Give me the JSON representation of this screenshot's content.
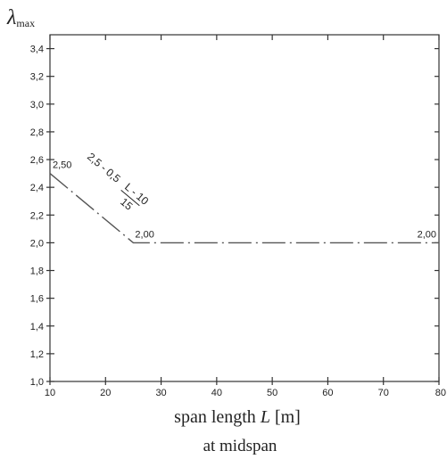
{
  "chart_data": {
    "type": "line",
    "title": "",
    "ylabel": {
      "symbol": "λ",
      "subscript": "max"
    },
    "xlabel": {
      "prefix": "span length ",
      "var": "L",
      "suffix": " [m]"
    },
    "caption": "at midspan",
    "xlim": [
      10,
      80
    ],
    "ylim": [
      1.0,
      3.5
    ],
    "x_ticks": [
      10,
      20,
      30,
      40,
      50,
      60,
      70,
      80
    ],
    "x_tick_labels": [
      "10",
      "20",
      "30",
      "40",
      "50",
      "60",
      "70",
      "80"
    ],
    "y_ticks": [
      1.0,
      1.2,
      1.4,
      1.6,
      1.8,
      2.0,
      2.2,
      2.4,
      2.6,
      2.8,
      3.0,
      3.2,
      3.4
    ],
    "y_tick_labels": [
      "1,0",
      "1,2",
      "1,4",
      "1,6",
      "1,8",
      "2,0",
      "2,2",
      "2,4",
      "2,6",
      "2,8",
      "3,0",
      "3,2",
      "3,4"
    ],
    "grid": false,
    "series": [
      {
        "x": [
          10,
          25,
          80
        ],
        "y": [
          2.5,
          2.0,
          2.0
        ],
        "style": "dash-dot",
        "color": "#555555"
      }
    ],
    "annotations": [
      {
        "text": "2,50",
        "x": 10,
        "y": 2.5
      },
      {
        "text": "2,00",
        "x": 25,
        "y": 2.0
      },
      {
        "text": "2,00",
        "x": 80,
        "y": 2.0
      }
    ],
    "formula": {
      "prefix": "2,5 - 0,5",
      "numerator": "L - 10",
      "denominator": "15"
    }
  }
}
